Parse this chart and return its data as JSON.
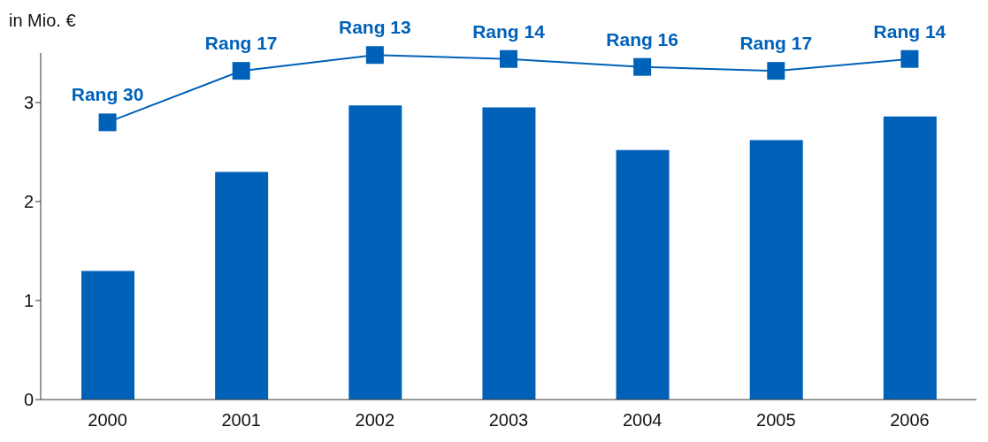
{
  "chart_data": {
    "type": "bar",
    "ylabel": "in Mio. €",
    "categories": [
      "2000",
      "2001",
      "2002",
      "2003",
      "2004",
      "2005",
      "2006"
    ],
    "series": [
      {
        "color": "#0061b9",
        "values": [
          1.3,
          2.3,
          2.97,
          2.95,
          2.52,
          2.62,
          2.86
        ]
      },
      {
        "type": "line",
        "color": "#0061b9",
        "marker": "square",
        "values": [
          2.8,
          3.32,
          3.48,
          3.44,
          3.36,
          3.32,
          3.44
        ],
        "value_labels": [
          "Rang 30",
          "Rang 17",
          "Rang 13",
          "Rang 14",
          "Rang 16",
          "Rang 17",
          "Rang 14"
        ]
      }
    ],
    "ylim": [
      0,
      3.5
    ],
    "yticks": [
      0,
      1,
      2,
      3
    ],
    "grid": false,
    "legend": false
  }
}
